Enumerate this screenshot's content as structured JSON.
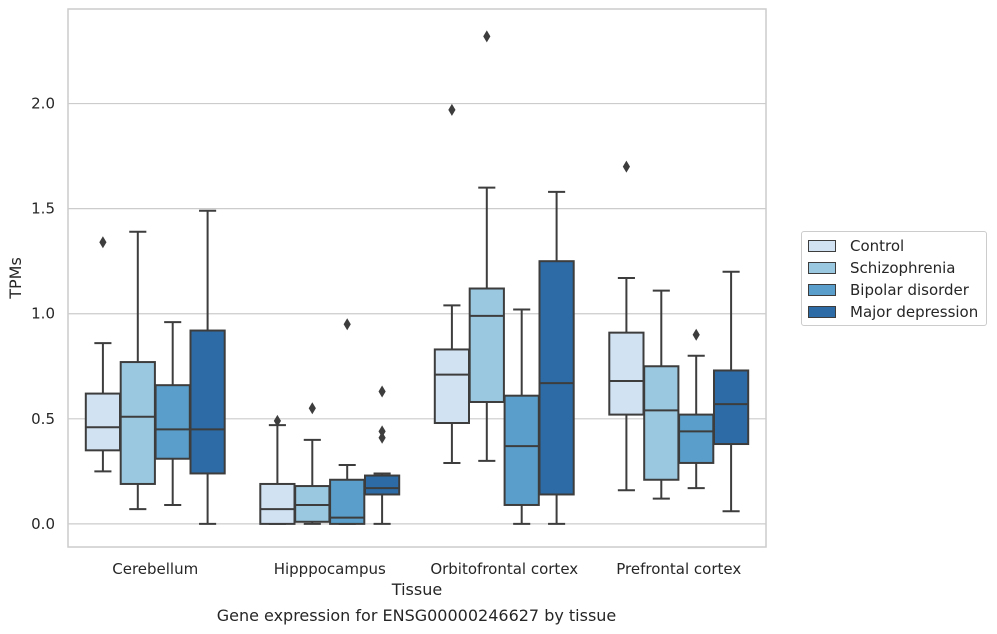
{
  "caption": "Gene expression for ENSG00000246627 by tissue",
  "chart_data": {
    "type": "box",
    "xlabel": "Tissue",
    "ylabel": "TPMs",
    "ylim": [
      -0.11,
      2.45
    ],
    "yticks": [
      0.0,
      0.5,
      1.0,
      1.5,
      2.0
    ],
    "ytick_labels": [
      "0.0",
      "0.5",
      "1.0",
      "1.5",
      "2.0"
    ],
    "grid": true,
    "legend_position": "right",
    "categories": [
      "Cerebellum",
      "Hipppocampus",
      "Orbitofrontal cortex",
      "Prefrontal cortex"
    ],
    "series": [
      {
        "name": "Control",
        "color": "#d1e2f2",
        "boxes": [
          {
            "whislo": 0.25,
            "q1": 0.35,
            "med": 0.46,
            "q3": 0.62,
            "whishi": 0.86,
            "fliers": [
              1.34
            ]
          },
          {
            "whislo": 0.0,
            "q1": 0.0,
            "med": 0.07,
            "q3": 0.19,
            "whishi": 0.47,
            "fliers": [
              0.49
            ]
          },
          {
            "whislo": 0.29,
            "q1": 0.48,
            "med": 0.71,
            "q3": 0.83,
            "whishi": 1.04,
            "fliers": [
              1.97
            ]
          },
          {
            "whislo": 0.16,
            "q1": 0.52,
            "med": 0.68,
            "q3": 0.91,
            "whishi": 1.17,
            "fliers": [
              1.7
            ]
          }
        ]
      },
      {
        "name": "Schizophrenia",
        "color": "#9ac8e0",
        "boxes": [
          {
            "whislo": 0.07,
            "q1": 0.19,
            "med": 0.51,
            "q3": 0.77,
            "whishi": 1.39,
            "fliers": []
          },
          {
            "whislo": 0.0,
            "q1": 0.01,
            "med": 0.09,
            "q3": 0.18,
            "whishi": 0.4,
            "fliers": [
              0.55
            ]
          },
          {
            "whislo": 0.3,
            "q1": 0.58,
            "med": 0.99,
            "q3": 1.12,
            "whishi": 1.6,
            "fliers": [
              2.32
            ]
          },
          {
            "whislo": 0.12,
            "q1": 0.21,
            "med": 0.54,
            "q3": 0.75,
            "whishi": 1.11,
            "fliers": []
          }
        ]
      },
      {
        "name": "Bipolar disorder",
        "color": "#5a9fcb",
        "boxes": [
          {
            "whislo": 0.09,
            "q1": 0.31,
            "med": 0.45,
            "q3": 0.66,
            "whishi": 0.96,
            "fliers": []
          },
          {
            "whislo": 0.0,
            "q1": 0.0,
            "med": 0.03,
            "q3": 0.21,
            "whishi": 0.28,
            "fliers": [
              0.95
            ]
          },
          {
            "whislo": 0.0,
            "q1": 0.09,
            "med": 0.37,
            "q3": 0.61,
            "whishi": 1.02,
            "fliers": []
          },
          {
            "whislo": 0.17,
            "q1": 0.29,
            "med": 0.44,
            "q3": 0.52,
            "whishi": 0.8,
            "fliers": [
              0.9
            ]
          }
        ]
      },
      {
        "name": "Major depression",
        "color": "#2c6ba6",
        "boxes": [
          {
            "whislo": 0.0,
            "q1": 0.24,
            "med": 0.45,
            "q3": 0.92,
            "whishi": 1.49,
            "fliers": []
          },
          {
            "whislo": 0.0,
            "q1": 0.14,
            "med": 0.17,
            "q3": 0.23,
            "whishi": 0.24,
            "fliers": [
              0.41,
              0.44,
              0.63
            ]
          },
          {
            "whislo": 0.0,
            "q1": 0.14,
            "med": 0.67,
            "q3": 1.25,
            "whishi": 1.58,
            "fliers": []
          },
          {
            "whislo": 0.06,
            "q1": 0.38,
            "med": 0.57,
            "q3": 0.73,
            "whishi": 1.2,
            "fliers": []
          }
        ]
      }
    ]
  }
}
